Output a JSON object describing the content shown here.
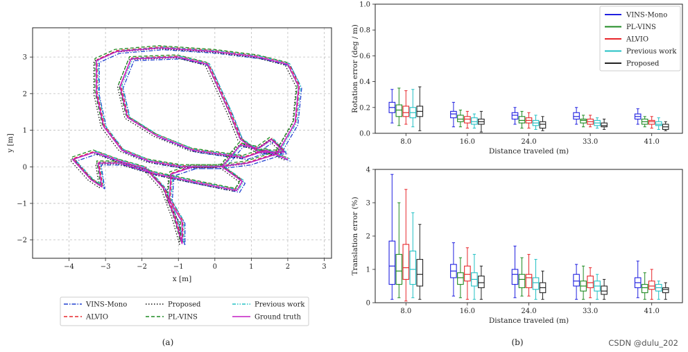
{
  "figure": {
    "caption_a": "(a)",
    "caption_b": "(b)",
    "watermark": "CSDN @dulu_202"
  },
  "chart_data": [
    {
      "id": "a",
      "type": "line",
      "xlabel": "x [m]",
      "ylabel": "y [m]",
      "xlim": [
        -5,
        3.2
      ],
      "ylim": [
        -2.5,
        3.8
      ],
      "xticks": [
        -4,
        -3,
        -2,
        -1,
        0,
        1,
        2,
        3
      ],
      "yticks": [
        -2,
        -1,
        0,
        1,
        2,
        3
      ],
      "grid": true,
      "legend_position": "bottom-outside",
      "series": [
        {
          "name": "VINS-Mono",
          "color": "#1f3fcf",
          "dash": "dashdot",
          "offset": [
            0.08,
            -0.05
          ]
        },
        {
          "name": "ALVIO",
          "color": "#e8262b",
          "dash": "dashed",
          "offset": [
            0.02,
            0.03
          ]
        },
        {
          "name": "Proposed",
          "color": "#111111",
          "dash": "dotted",
          "offset": [
            -0.07,
            -0.02
          ]
        },
        {
          "name": "PL-VINS",
          "color": "#1e8a22",
          "dash": "dashed",
          "offset": [
            -0.04,
            0.06
          ]
        },
        {
          "name": "Previous work",
          "color": "#22c0c4",
          "dash": "dashdotdot",
          "offset": [
            0.05,
            0.02
          ]
        },
        {
          "name": "Ground truth",
          "color": "#c41fc4",
          "dash": "solid",
          "offset": [
            0,
            0
          ]
        }
      ],
      "ground_truth_xy": [
        [
          0.1,
          0.0
        ],
        [
          -0.9,
          0.0
        ],
        [
          -1.8,
          0.15
        ],
        [
          -2.55,
          0.45
        ],
        [
          -3.05,
          1.1
        ],
        [
          -3.25,
          2.0
        ],
        [
          -3.25,
          2.9
        ],
        [
          -2.7,
          3.15
        ],
        [
          -1.5,
          3.25
        ],
        [
          0.0,
          3.15
        ],
        [
          1.2,
          3.0
        ],
        [
          2.0,
          2.8
        ],
        [
          2.3,
          2.2
        ],
        [
          2.2,
          1.2
        ],
        [
          1.7,
          0.35
        ],
        [
          0.9,
          0.1
        ],
        [
          0.1,
          0.0
        ],
        [
          -0.6,
          0.0
        ],
        [
          -1.2,
          -0.2
        ],
        [
          -1.25,
          -0.9
        ],
        [
          -0.9,
          -1.5
        ],
        [
          -0.9,
          -2.1
        ],
        [
          -1.1,
          -1.4
        ],
        [
          -1.4,
          -0.6
        ],
        [
          -1.9,
          -0.05
        ],
        [
          -2.6,
          0.15
        ],
        [
          -3.3,
          0.4
        ],
        [
          -3.9,
          0.2
        ],
        [
          -3.4,
          -0.35
        ],
        [
          -3.1,
          -0.55
        ],
        [
          -3.2,
          0.1
        ],
        [
          -2.6,
          0.1
        ],
        [
          -1.6,
          -0.2
        ],
        [
          -0.4,
          -0.45
        ],
        [
          0.6,
          -0.65
        ],
        [
          0.75,
          -0.4
        ],
        [
          0.2,
          0.0
        ],
        [
          0.7,
          0.6
        ],
        [
          1.2,
          0.5
        ],
        [
          1.55,
          0.75
        ],
        [
          1.9,
          0.4
        ],
        [
          1.2,
          0.4
        ],
        [
          0.7,
          0.75
        ],
        [
          0.4,
          1.5
        ],
        [
          -0.2,
          2.8
        ],
        [
          -1.0,
          3.0
        ],
        [
          -2.3,
          2.95
        ],
        [
          -2.6,
          2.2
        ],
        [
          -2.4,
          1.35
        ],
        [
          -1.6,
          0.85
        ],
        [
          -0.6,
          0.45
        ],
        [
          0.8,
          0.25
        ],
        [
          1.4,
          0.45
        ],
        [
          2.0,
          0.2
        ]
      ]
    },
    {
      "id": "b_top",
      "type": "box",
      "xlabel": "Distance traveled (m)",
      "ylabel": "Rotation error (deg / m)",
      "ylim": [
        0,
        1.0
      ],
      "yticks": [
        0.0,
        0.2,
        0.4,
        0.6,
        0.8,
        1.0
      ],
      "yticklabels": [
        "0.0",
        "0.2",
        "0.4",
        "0.6",
        "0.8",
        "1.0"
      ],
      "categories": [
        "8.0",
        "16.0",
        "24.0",
        "33.0",
        "41.0"
      ],
      "legend_position": "top-right",
      "series": [
        {
          "name": "VINS-Mono",
          "color": "#2020e0",
          "boxes": [
            [
              0.08,
              0.16,
              0.2,
              0.24,
              0.34
            ],
            [
              0.05,
              0.12,
              0.15,
              0.17,
              0.24
            ],
            [
              0.07,
              0.11,
              0.14,
              0.16,
              0.2
            ],
            [
              0.07,
              0.11,
              0.13,
              0.16,
              0.2
            ],
            [
              0.07,
              0.11,
              0.13,
              0.15,
              0.19
            ]
          ]
        },
        {
          "name": "PL-VINS",
          "color": "#1e8a22",
          "boxes": [
            [
              0.06,
              0.13,
              0.18,
              0.22,
              0.35
            ],
            [
              0.05,
              0.09,
              0.11,
              0.14,
              0.18
            ],
            [
              0.04,
              0.08,
              0.1,
              0.13,
              0.17
            ],
            [
              0.05,
              0.08,
              0.1,
              0.11,
              0.14
            ],
            [
              0.05,
              0.07,
              0.09,
              0.11,
              0.13
            ]
          ]
        },
        {
          "name": "ALVIO",
          "color": "#e8262b",
          "boxes": [
            [
              0.07,
              0.13,
              0.16,
              0.21,
              0.33
            ],
            [
              0.04,
              0.08,
              0.11,
              0.13,
              0.17
            ],
            [
              0.04,
              0.08,
              0.1,
              0.12,
              0.16
            ],
            [
              0.05,
              0.07,
              0.09,
              0.11,
              0.14
            ],
            [
              0.04,
              0.07,
              0.09,
              0.1,
              0.13
            ]
          ]
        },
        {
          "name": "Previous work",
          "color": "#22c0c4",
          "boxes": [
            [
              0.05,
              0.12,
              0.16,
              0.2,
              0.34
            ],
            [
              0.04,
              0.07,
              0.09,
              0.12,
              0.15
            ],
            [
              0.03,
              0.06,
              0.08,
              0.1,
              0.14
            ],
            [
              0.04,
              0.06,
              0.08,
              0.1,
              0.12
            ],
            [
              0.03,
              0.06,
              0.07,
              0.09,
              0.12
            ]
          ]
        },
        {
          "name": "Proposed",
          "color": "#222222",
          "boxes": [
            [
              0.02,
              0.13,
              0.17,
              0.21,
              0.36
            ],
            [
              0.01,
              0.07,
              0.09,
              0.11,
              0.17
            ],
            [
              0.02,
              0.04,
              0.07,
              0.09,
              0.13
            ],
            [
              0.03,
              0.05,
              0.06,
              0.08,
              0.11
            ],
            [
              0.02,
              0.03,
              0.05,
              0.07,
              0.09
            ]
          ]
        }
      ]
    },
    {
      "id": "b_bottom",
      "type": "box",
      "xlabel": "Distance traveled (m)",
      "ylabel": "Translation error (%)",
      "ylim": [
        0,
        4.0
      ],
      "yticks": [
        0,
        1,
        2,
        3,
        4
      ],
      "yticklabels": [
        "0",
        "1",
        "2",
        "3",
        "4"
      ],
      "categories": [
        "8.0",
        "16.0",
        "24.0",
        "33.0",
        "41.0"
      ],
      "series": [
        {
          "name": "VINS-Mono",
          "color": "#2020e0",
          "boxes": [
            [
              0.1,
              0.55,
              1.1,
              1.85,
              3.85
            ],
            [
              0.2,
              0.75,
              0.95,
              1.15,
              1.8
            ],
            [
              0.15,
              0.55,
              0.85,
              1.0,
              1.7
            ],
            [
              0.1,
              0.5,
              0.65,
              0.85,
              1.15
            ],
            [
              0.15,
              0.45,
              0.6,
              0.75,
              1.25
            ]
          ]
        },
        {
          "name": "PL-VINS",
          "color": "#1e8a22",
          "boxes": [
            [
              0.15,
              0.55,
              0.95,
              1.45,
              3.0
            ],
            [
              0.15,
              0.55,
              0.75,
              0.9,
              1.35
            ],
            [
              0.2,
              0.45,
              0.7,
              0.85,
              1.35
            ],
            [
              0.1,
              0.35,
              0.5,
              0.65,
              1.1
            ],
            [
              0.1,
              0.3,
              0.45,
              0.55,
              0.9
            ]
          ]
        },
        {
          "name": "ALVIO",
          "color": "#e8262b",
          "boxes": [
            [
              0.05,
              0.7,
              1.05,
              1.75,
              3.4
            ],
            [
              0.1,
              0.65,
              0.85,
              1.1,
              1.65
            ],
            [
              0.2,
              0.45,
              0.75,
              0.85,
              1.45
            ],
            [
              0.15,
              0.45,
              0.6,
              0.8,
              1.05
            ],
            [
              0.1,
              0.4,
              0.5,
              0.65,
              1.0
            ]
          ]
        },
        {
          "name": "Previous work",
          "color": "#22c0c4",
          "boxes": [
            [
              0.15,
              0.55,
              1.0,
              1.55,
              2.7
            ],
            [
              0.1,
              0.5,
              0.7,
              0.9,
              1.45
            ],
            [
              0.1,
              0.4,
              0.6,
              0.75,
              1.3
            ],
            [
              0.1,
              0.35,
              0.5,
              0.65,
              0.85
            ],
            [
              0.1,
              0.35,
              0.45,
              0.55,
              0.65
            ]
          ]
        },
        {
          "name": "Proposed",
          "color": "#222222",
          "boxes": [
            [
              0.1,
              0.5,
              0.85,
              1.3,
              2.35
            ],
            [
              0.1,
              0.45,
              0.6,
              0.8,
              1.1
            ],
            [
              0.1,
              0.3,
              0.45,
              0.6,
              0.95
            ],
            [
              0.1,
              0.25,
              0.35,
              0.5,
              0.7
            ],
            [
              0.1,
              0.3,
              0.4,
              0.45,
              0.6
            ]
          ]
        }
      ]
    }
  ]
}
